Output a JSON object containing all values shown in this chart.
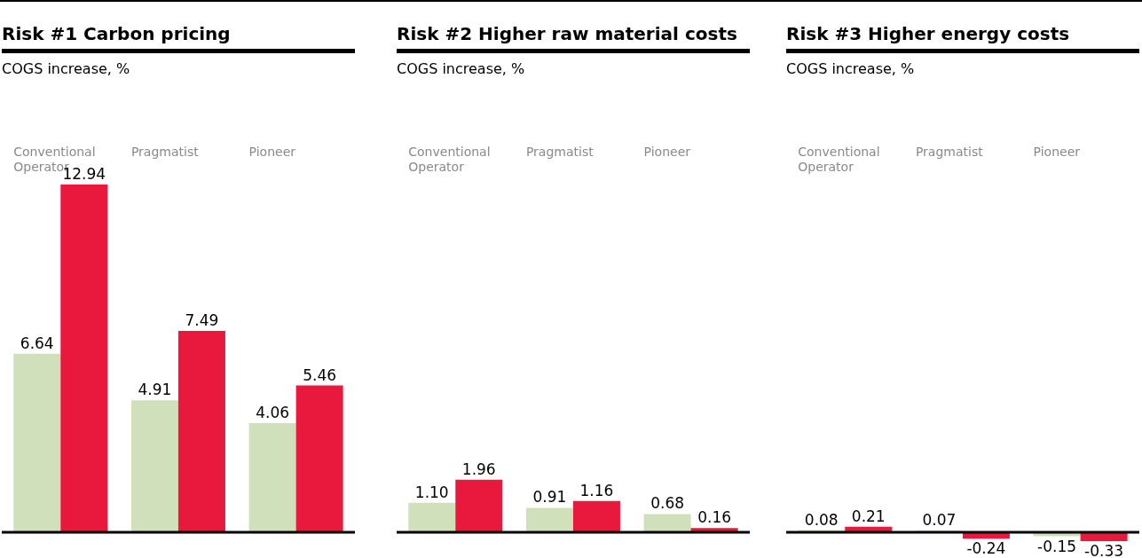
{
  "chart_data": [
    {
      "type": "bar",
      "title": "Risk #1 Carbon pricing",
      "subtitle": "COGS increase, %",
      "categories": [
        "Conventional Operator",
        "Pragmatist",
        "Pioneer"
      ],
      "tick_labels": "x",
      "series": [
        {
          "color": "#cfe0bb",
          "values": [
            6.64,
            4.91,
            4.06
          ],
          "value_labels": [
            "6.64",
            "4.91",
            "4.06"
          ]
        },
        {
          "color": "#e8193c",
          "values": [
            12.94,
            7.49,
            5.46
          ],
          "value_labels": [
            "12.94",
            "7.49",
            "5.46"
          ]
        }
      ]
    },
    {
      "type": "bar",
      "title": "Risk #2 Higher raw material costs",
      "subtitle": "COGS increase, %",
      "categories": [
        "Conventional Operator",
        "Pragmatist",
        "Pioneer"
      ],
      "tick_labels": "x",
      "series": [
        {
          "color": "#cfe0bb",
          "values": [
            1.1,
            0.91,
            0.68
          ],
          "value_labels": [
            "1.10",
            "0.91",
            "0.68"
          ]
        },
        {
          "color": "#e8193c",
          "values": [
            1.96,
            1.16,
            0.16
          ],
          "value_labels": [
            "1.96",
            "1.16",
            "0.16"
          ]
        }
      ]
    },
    {
      "type": "bar",
      "title": "Risk #3 Higher energy costs",
      "subtitle": "COGS increase, %",
      "categories": [
        "Conventional Operator",
        "Pragmatist",
        "Pioneer"
      ],
      "tick_labels": "x",
      "series": [
        {
          "color": "#cfe0bb",
          "values": [
            0.08,
            0.07,
            -0.15
          ],
          "value_labels": [
            "0.08",
            "0.07",
            "-0.15"
          ]
        },
        {
          "color": "#e8193c",
          "values": [
            0.21,
            -0.24,
            -0.33
          ],
          "value_labels": [
            "0.21",
            "-0.24",
            "-0.33"
          ]
        }
      ]
    }
  ]
}
